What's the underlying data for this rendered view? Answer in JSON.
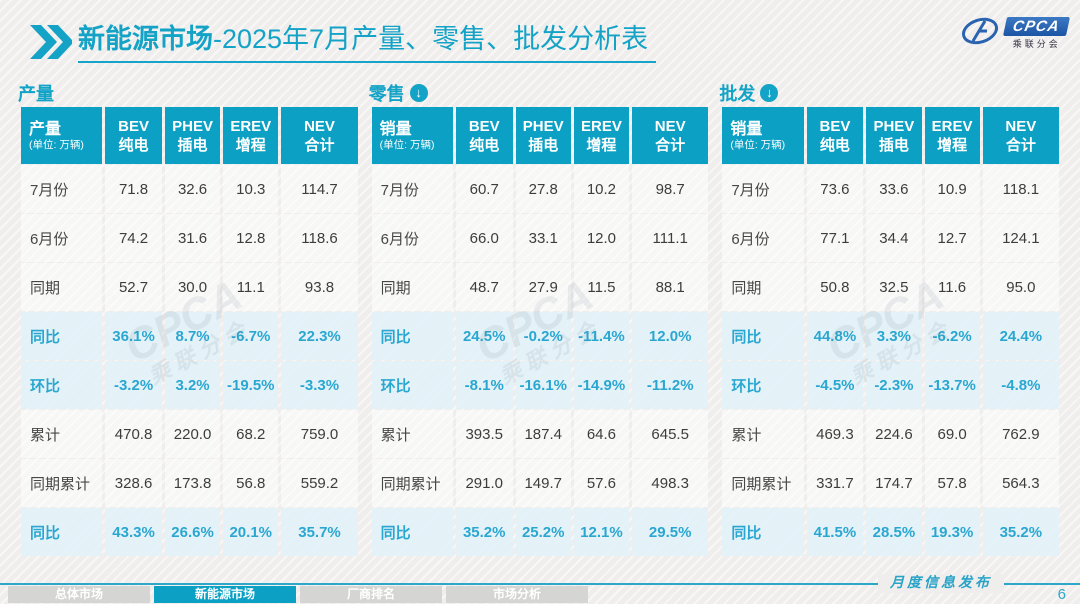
{
  "title": {
    "highlight": "新能源市场",
    "rest": "-2025年7月产量、零售、批发分析表"
  },
  "logo": {
    "name": "CPCA",
    "subname": "乘联分会"
  },
  "watermark": {
    "line1": "CPCA",
    "line2": "乘联分会"
  },
  "colors": {
    "accent_teal": "#0ca1c4",
    "percent_blue": "#2aa7d1",
    "percent_row_bg": "#e3f1f9",
    "page_bg": "#efeeec"
  },
  "column_headers": [
    {
      "line1": "BEV",
      "line2": "纯电"
    },
    {
      "line1": "PHEV",
      "line2": "插电"
    },
    {
      "line1": "EREV",
      "line2": "增程"
    },
    {
      "line1": "NEV",
      "line2": "合计"
    }
  ],
  "tables": [
    {
      "id": "production",
      "section_label": "产量",
      "arrow": false,
      "first_col": {
        "title": "产量",
        "unit": "(单位: 万辆)"
      },
      "rows": [
        {
          "label": "7月份",
          "type": "normal",
          "values": [
            "71.8",
            "32.6",
            "10.3",
            "114.7"
          ]
        },
        {
          "label": "6月份",
          "type": "normal",
          "values": [
            "74.2",
            "31.6",
            "12.8",
            "118.6"
          ]
        },
        {
          "label": "同期",
          "type": "normal",
          "values": [
            "52.7",
            "30.0",
            "11.1",
            "93.8"
          ]
        },
        {
          "label": "同比",
          "type": "percent",
          "values": [
            "36.1%",
            "8.7%",
            "-6.7%",
            "22.3%"
          ]
        },
        {
          "label": "环比",
          "type": "percent",
          "values": [
            "-3.2%",
            "3.2%",
            "-19.5%",
            "-3.3%"
          ]
        },
        {
          "label": "累计",
          "type": "normal",
          "values": [
            "470.8",
            "220.0",
            "68.2",
            "759.0"
          ]
        },
        {
          "label": "同期累计",
          "type": "normal",
          "values": [
            "328.6",
            "173.8",
            "56.8",
            "559.2"
          ]
        },
        {
          "label": "同比",
          "type": "percent",
          "values": [
            "43.3%",
            "26.6%",
            "20.1%",
            "35.7%"
          ]
        }
      ]
    },
    {
      "id": "retail",
      "section_label": "零售",
      "arrow": true,
      "first_col": {
        "title": "销量",
        "unit": "(单位: 万辆)"
      },
      "rows": [
        {
          "label": "7月份",
          "type": "normal",
          "values": [
            "60.7",
            "27.8",
            "10.2",
            "98.7"
          ]
        },
        {
          "label": "6月份",
          "type": "normal",
          "values": [
            "66.0",
            "33.1",
            "12.0",
            "111.1"
          ]
        },
        {
          "label": "同期",
          "type": "normal",
          "values": [
            "48.7",
            "27.9",
            "11.5",
            "88.1"
          ]
        },
        {
          "label": "同比",
          "type": "percent",
          "values": [
            "24.5%",
            "-0.2%",
            "-11.4%",
            "12.0%"
          ]
        },
        {
          "label": "环比",
          "type": "percent",
          "values": [
            "-8.1%",
            "-16.1%",
            "-14.9%",
            "-11.2%"
          ]
        },
        {
          "label": "累计",
          "type": "normal",
          "values": [
            "393.5",
            "187.4",
            "64.6",
            "645.5"
          ]
        },
        {
          "label": "同期累计",
          "type": "normal",
          "values": [
            "291.0",
            "149.7",
            "57.6",
            "498.3"
          ]
        },
        {
          "label": "同比",
          "type": "percent",
          "values": [
            "35.2%",
            "25.2%",
            "12.1%",
            "29.5%"
          ]
        }
      ]
    },
    {
      "id": "wholesale",
      "section_label": "批发",
      "arrow": true,
      "first_col": {
        "title": "销量",
        "unit": "(单位: 万辆)"
      },
      "rows": [
        {
          "label": "7月份",
          "type": "normal",
          "values": [
            "73.6",
            "33.6",
            "10.9",
            "118.1"
          ]
        },
        {
          "label": "6月份",
          "type": "normal",
          "values": [
            "77.1",
            "34.4",
            "12.7",
            "124.1"
          ]
        },
        {
          "label": "同期",
          "type": "normal",
          "values": [
            "50.8",
            "32.5",
            "11.6",
            "95.0"
          ]
        },
        {
          "label": "同比",
          "type": "percent",
          "values": [
            "44.8%",
            "3.3%",
            "-6.2%",
            "24.4%"
          ]
        },
        {
          "label": "环比",
          "type": "percent",
          "values": [
            "-4.5%",
            "-2.3%",
            "-13.7%",
            "-4.8%"
          ]
        },
        {
          "label": "累计",
          "type": "normal",
          "values": [
            "469.3",
            "224.6",
            "69.0",
            "762.9"
          ]
        },
        {
          "label": "同期累计",
          "type": "normal",
          "values": [
            "331.7",
            "174.7",
            "57.8",
            "564.3"
          ]
        },
        {
          "label": "同比",
          "type": "percent",
          "values": [
            "41.5%",
            "28.5%",
            "19.3%",
            "35.2%"
          ]
        }
      ]
    }
  ],
  "footer": {
    "tabs": [
      {
        "label": "总体市场",
        "active": false
      },
      {
        "label": "新能源市场",
        "active": true
      },
      {
        "label": "厂商排名",
        "active": false
      },
      {
        "label": "市场分析",
        "active": false
      }
    ],
    "publication": "月度信息发布",
    "page": "6"
  }
}
